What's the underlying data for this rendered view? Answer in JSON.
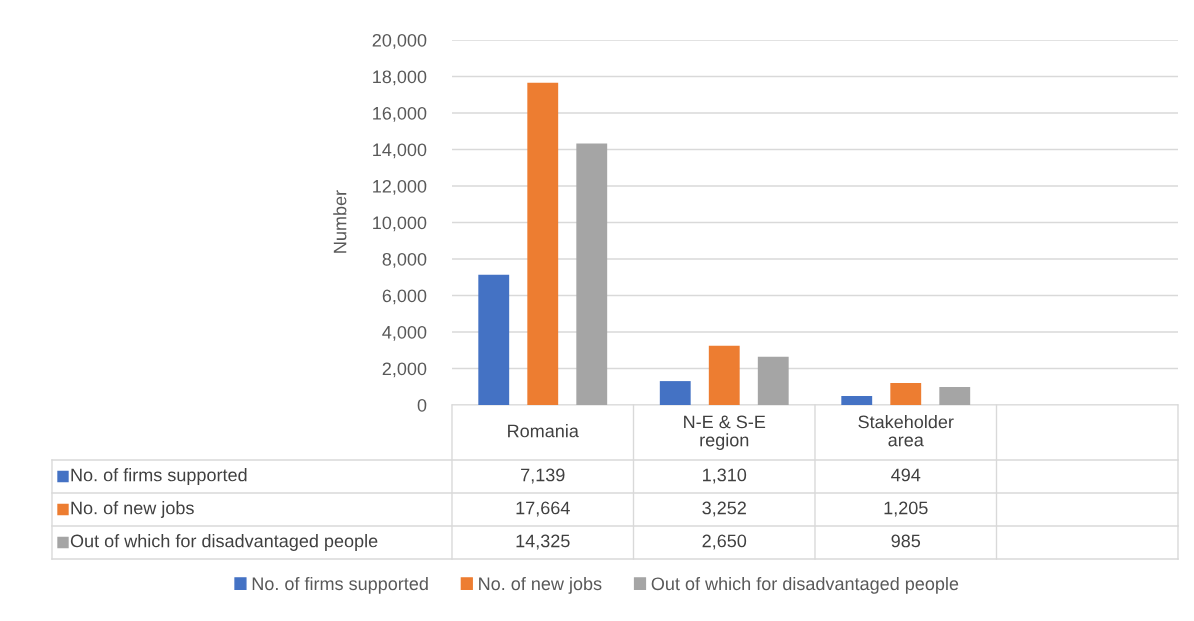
{
  "chart_data": {
    "type": "bar",
    "ylabel": "Number",
    "categories": [
      "Romania",
      "N-E & S-E region",
      "Stakeholder area",
      null
    ],
    "series": [
      {
        "name": "No. of firms supported",
        "color": "#4472c4",
        "values": [
          7139,
          1310,
          494,
          null
        ],
        "value_labels": [
          "7,139",
          "1,310",
          "494",
          null
        ]
      },
      {
        "name": "No. of new jobs",
        "color": "#ed7d31",
        "values": [
          17664,
          3252,
          1205,
          null
        ],
        "value_labels": [
          "17,664",
          "3,252",
          "1,205",
          null
        ]
      },
      {
        "name": "Out of which for disadvantaged people",
        "color": "#a5a5a5",
        "values": [
          14325,
          2650,
          985,
          null
        ],
        "value_labels": [
          "14,325",
          "2,650",
          "985",
          null
        ]
      }
    ],
    "ylim": [
      0,
      20000
    ],
    "yticks": [
      {
        "value": 0,
        "label": "0"
      },
      {
        "value": 2000,
        "label": "2,000"
      },
      {
        "value": 4000,
        "label": "4,000"
      },
      {
        "value": 6000,
        "label": "6,000"
      },
      {
        "value": 8000,
        "label": "8,000"
      },
      {
        "value": 10000,
        "label": "10,000"
      },
      {
        "value": 12000,
        "label": "12,000"
      },
      {
        "value": 14000,
        "label": "14,000"
      },
      {
        "value": 16000,
        "label": "16,000"
      },
      {
        "value": 18000,
        "label": "18,000"
      },
      {
        "value": 20000,
        "label": "20,000"
      }
    ],
    "grid": "y",
    "legend": "bottom"
  }
}
